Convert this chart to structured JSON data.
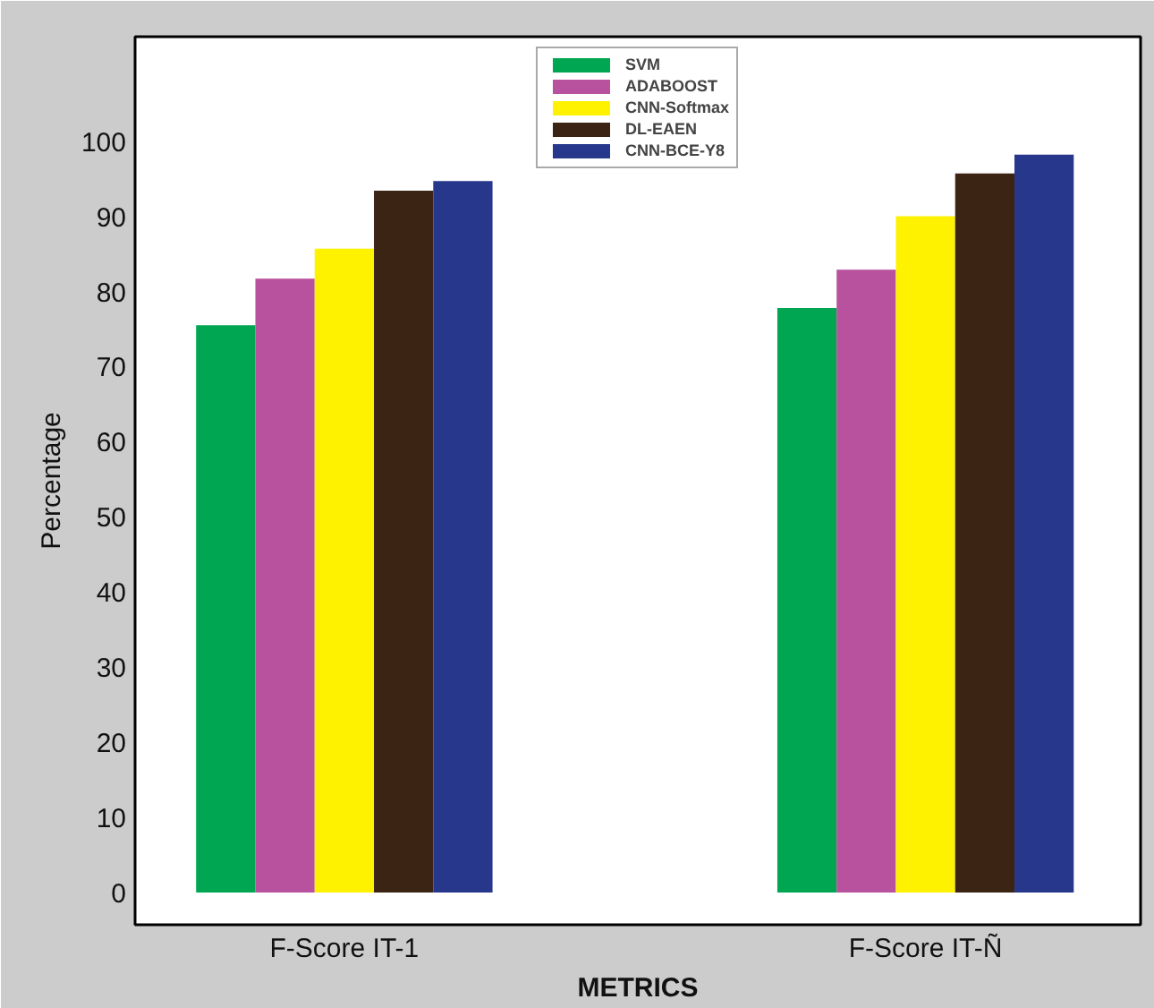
{
  "chart_data": {
    "type": "bar",
    "xlabel": "METRICS",
    "ylabel": "Percentage",
    "categories": [
      "F-Score IT-1",
      "F-Score IT-Ñ"
    ],
    "series": [
      {
        "name": "SVM",
        "color": "#00a651",
        "values": [
          75.5,
          77.8
        ]
      },
      {
        "name": "ADABOOST",
        "color": "#b8529e",
        "values": [
          81.7,
          82.9
        ]
      },
      {
        "name": "CNN-Softmax",
        "color": "#fff200",
        "values": [
          85.7,
          90.0
        ]
      },
      {
        "name": "DL-EAEN",
        "color": "#3c2415",
        "values": [
          93.4,
          95.7
        ]
      },
      {
        "name": "CNN-BCE-Y8",
        "color": "#27378c",
        "values": [
          94.7,
          98.2
        ]
      }
    ],
    "ylim": [
      -4.3,
      113.9
    ],
    "yticks": [
      0,
      10,
      20,
      30,
      40,
      50,
      60,
      70,
      80,
      90,
      100
    ],
    "grid": false,
    "legend": "top"
  }
}
